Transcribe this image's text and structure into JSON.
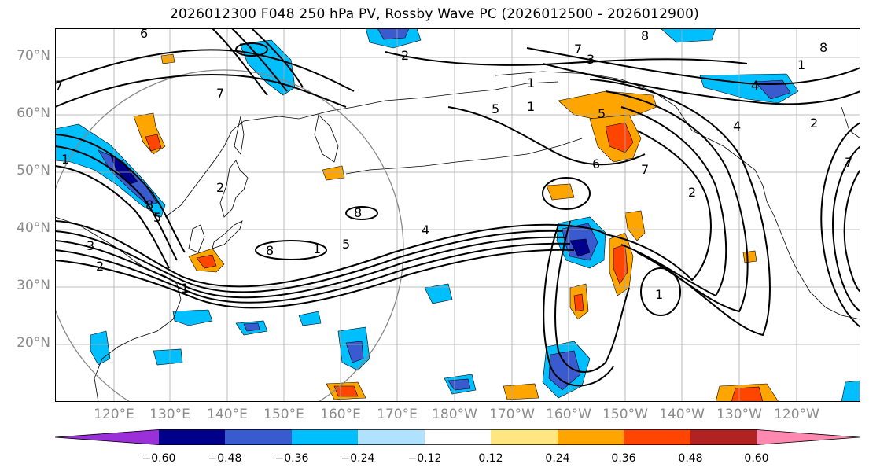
{
  "title": "2026012300 F048 250 hPa PV, Rossby Wave PC (2026012500 - 2026012900)",
  "lat_labels": [
    "70°N",
    "60°N",
    "50°N",
    "40°N",
    "30°N",
    "20°N"
  ],
  "lon_labels": [
    "120°E",
    "130°E",
    "140°E",
    "150°E",
    "160°E",
    "170°E",
    "180°W",
    "170°W",
    "160°W",
    "150°W",
    "140°W",
    "130°W",
    "120°W"
  ],
  "colorbar": {
    "tick_labels": [
      "−0.60",
      "−0.48",
      "−0.36",
      "−0.24",
      "−0.12",
      "0.12",
      "0.24",
      "0.36",
      "0.48",
      "0.60"
    ],
    "colors": [
      "#9b30d9",
      "#00008b",
      "#3a5bd0",
      "#00bfff",
      "#b0e2ff",
      "#ffffff",
      "#ffe680",
      "#ffa500",
      "#ff4500",
      "#b22222",
      "#ff88b0"
    ]
  },
  "contour_labels": [
    "2",
    "3",
    "8",
    "5",
    "8",
    "1",
    "1",
    "7",
    "6",
    "5",
    "8",
    "7",
    "1",
    "2",
    "5",
    "1",
    "4",
    "7",
    "6",
    "8",
    "4",
    "7",
    "2",
    "2",
    "8",
    "1",
    "1",
    "5",
    "4",
    "3",
    "2",
    "7",
    "1"
  ],
  "map_extent": {
    "lon": [
      112,
      248
    ],
    "lat": [
      10,
      75
    ]
  },
  "legend_title": ""
}
